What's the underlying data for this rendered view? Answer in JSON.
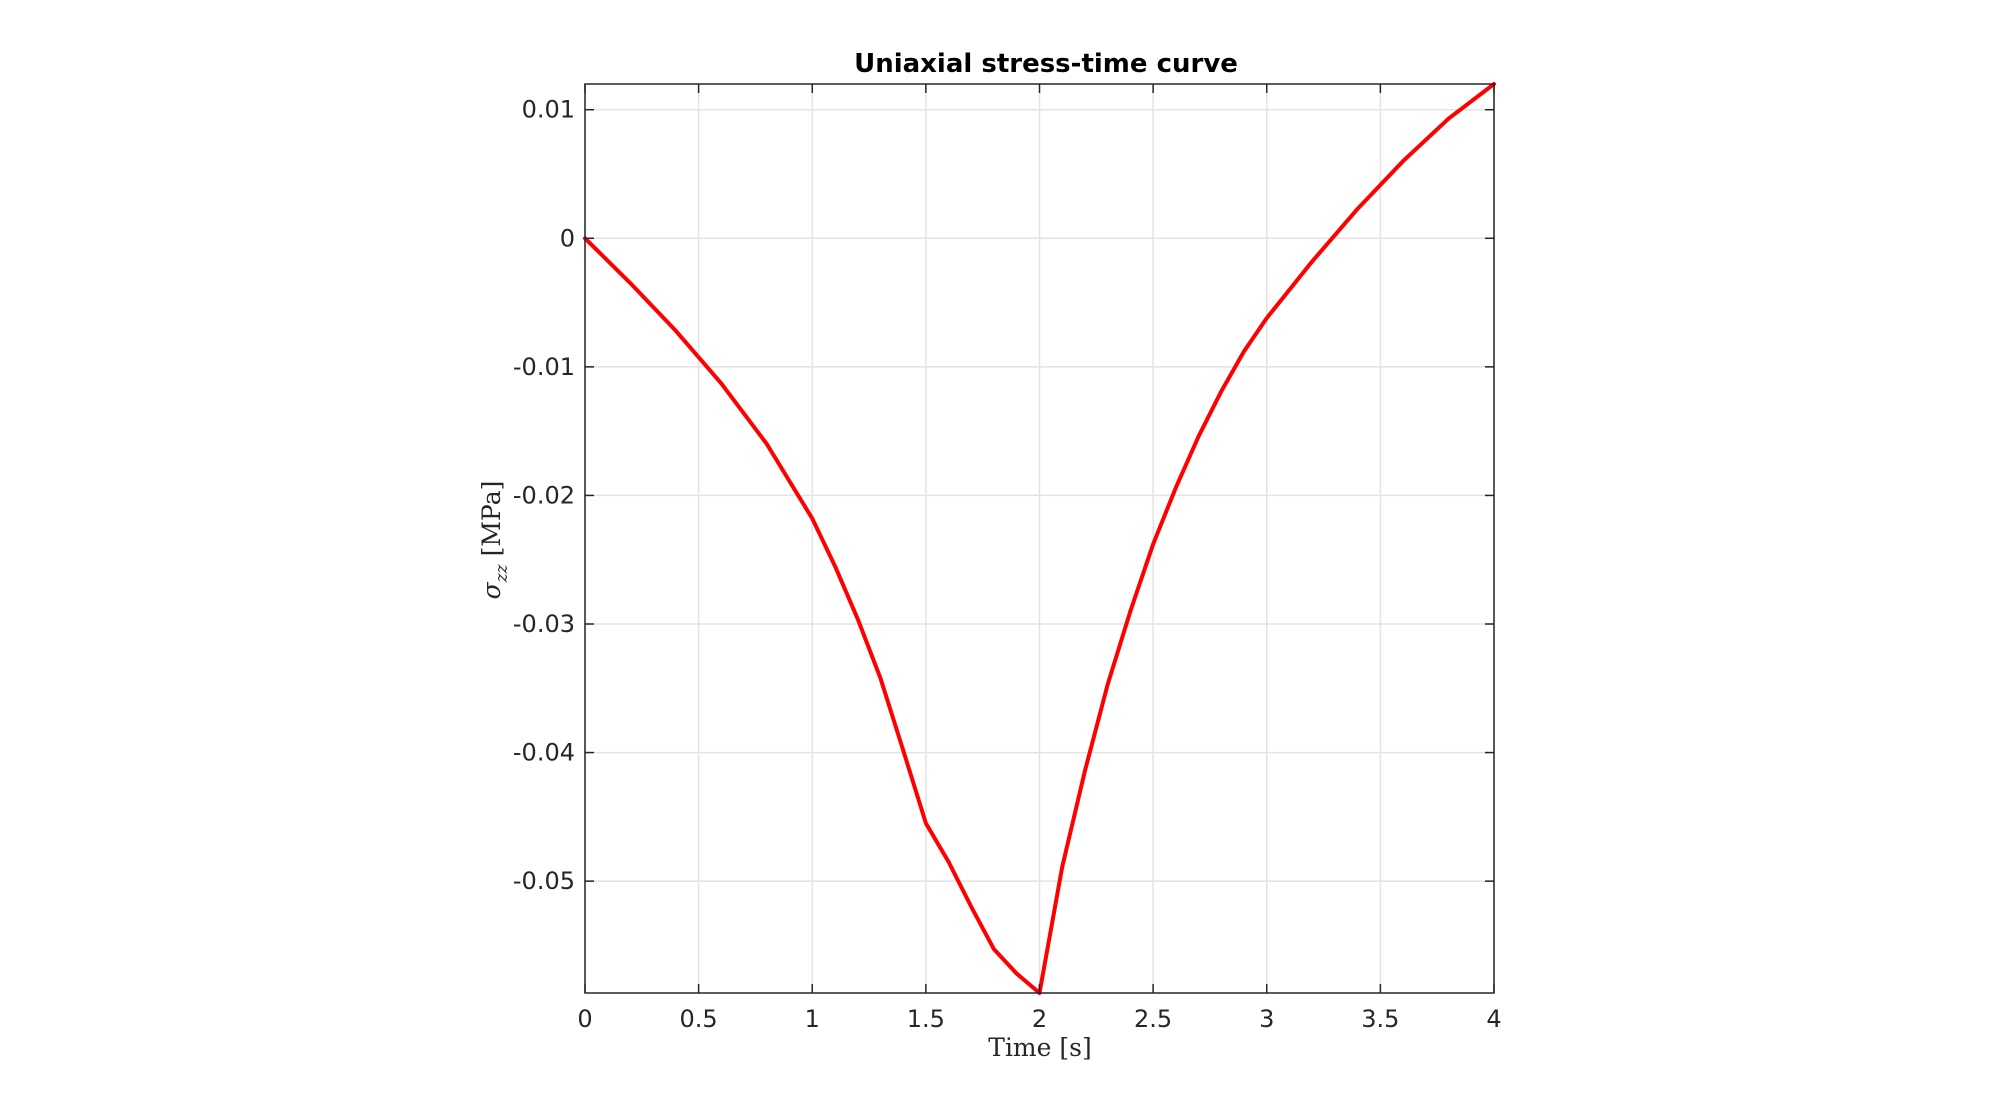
{
  "chart_data": {
    "type": "line",
    "title": "Uniaxial stress-time curve",
    "xlabel": "Time [s]",
    "ylabel": {
      "symbol": "σ",
      "subscript": "zz",
      "unit": "[MPa]"
    },
    "xlim": [
      0,
      4
    ],
    "ylim": [
      -0.0587,
      0.012
    ],
    "x_ticks": [
      0,
      0.5,
      1,
      1.5,
      2,
      2.5,
      3,
      3.5,
      4
    ],
    "x_tick_labels": [
      "0",
      "0.5",
      "1",
      "1.5",
      "2",
      "2.5",
      "3",
      "3.5",
      "4"
    ],
    "y_ticks": [
      0.01,
      0,
      -0.01,
      -0.02,
      -0.03,
      -0.04,
      -0.05
    ],
    "y_tick_labels": [
      "0.01",
      "0",
      "-0.01",
      "-0.02",
      "-0.03",
      "-0.04",
      "-0.05"
    ],
    "grid": true,
    "series": [
      {
        "color": "#ff0000",
        "x": [
          0,
          0.2,
          0.4,
          0.6,
          0.8,
          1.0,
          1.1,
          1.2,
          1.3,
          1.4,
          1.5,
          1.6,
          1.7,
          1.8,
          1.9,
          2.0,
          2.1,
          2.2,
          2.3,
          2.4,
          2.5,
          2.6,
          2.7,
          2.8,
          2.9,
          3.0,
          3.2,
          3.4,
          3.6,
          3.8,
          4.0
        ],
        "y": [
          0,
          -0.0035,
          -0.0072,
          -0.0113,
          -0.016,
          -0.0218,
          -0.0255,
          -0.0296,
          -0.0342,
          -0.0398,
          -0.0455,
          -0.0485,
          -0.052,
          -0.0553,
          -0.0572,
          -0.0587,
          -0.0489,
          -0.0414,
          -0.0347,
          -0.029,
          -0.0238,
          -0.0194,
          -0.0154,
          -0.0119,
          -0.0088,
          -0.0062,
          -0.0018,
          0.0023,
          0.006,
          0.0093,
          0.012
        ]
      }
    ]
  }
}
